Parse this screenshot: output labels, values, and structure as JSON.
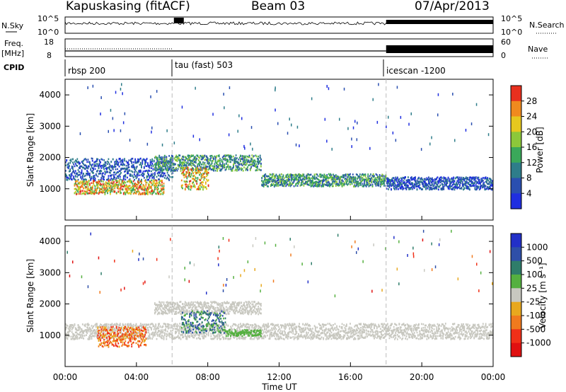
{
  "header": {
    "station": "Kapuskasing (fitACF)",
    "beam": "Beam 03",
    "date": "07/Apr/2013"
  },
  "panel_labels": {
    "nsky": "N.Sky",
    "freq": "Freq.",
    "freq_unit": "[MHz]",
    "cpid": "CPID",
    "nsearch": "N.Search",
    "nave": "Nave"
  },
  "noise_axis": {
    "left_top": "10^5",
    "left_bottom": "10^0",
    "right_top": "10^5",
    "right_bottom": "10^0"
  },
  "freq_axis": {
    "left_top": "18",
    "left_bottom": "8",
    "right_top": "60",
    "right_bottom": "0"
  },
  "cpid_segments": [
    {
      "label": "rbsp 200",
      "start_h": 0
    },
    {
      "label": "tau (fast) 503",
      "start_h": 6
    },
    {
      "label": "icescan -1200",
      "start_h": 18
    }
  ],
  "chart_data": [
    {
      "type": "heatmap",
      "name": "power",
      "ylabel": "Slant Range [km]",
      "xlabel": "Time UT",
      "xlim": [
        0,
        24
      ],
      "ylim": [
        0,
        4500
      ],
      "x_ticks": [
        "00:00",
        "04:00",
        "08:00",
        "12:00",
        "16:00",
        "20:00",
        "00:00"
      ],
      "y_ticks": [
        1000,
        2000,
        3000,
        4000
      ],
      "colorbar": {
        "label": "Power [dB]",
        "ticks": [
          "4",
          "8",
          "12",
          "16",
          "20",
          "24",
          "28"
        ],
        "colors": [
          "#1f2ee0",
          "#2a4fb0",
          "#2e7d8a",
          "#3aa85a",
          "#8cc83a",
          "#e6c81e",
          "#f08a1e",
          "#e8301e"
        ]
      },
      "scatter_bands": [
        {
          "t_start": 0,
          "t_end": 6,
          "range_lo": 1300,
          "range_hi": 2000,
          "level": "low"
        },
        {
          "t_start": 0.5,
          "t_end": 5.5,
          "range_lo": 850,
          "range_hi": 1300,
          "level": "high"
        },
        {
          "t_start": 5,
          "t_end": 11,
          "range_lo": 1600,
          "range_hi": 2100,
          "level": "mid"
        },
        {
          "t_start": 6.5,
          "t_end": 8,
          "range_lo": 1000,
          "range_hi": 1700,
          "level": "high"
        },
        {
          "t_start": 11,
          "t_end": 18,
          "range_lo": 1100,
          "range_hi": 1500,
          "level": "mid"
        },
        {
          "t_start": 18,
          "t_end": 24,
          "range_lo": 1000,
          "range_hi": 1400,
          "level": "low"
        }
      ]
    },
    {
      "type": "heatmap",
      "name": "velocity",
      "ylabel": "Slant Range [km]",
      "xlabel": "Time UT",
      "xlim": [
        0,
        24
      ],
      "ylim": [
        0,
        4500
      ],
      "x_ticks": [
        "00:00",
        "04:00",
        "08:00",
        "12:00",
        "16:00",
        "20:00",
        "00:00"
      ],
      "y_ticks": [
        1000,
        2000,
        3000,
        4000
      ],
      "colorbar": {
        "label": "Velocity [m s⁻¹]",
        "ticks": [
          "1000",
          "500",
          "100",
          "25",
          "-25",
          "-100",
          "-500",
          "-1000"
        ],
        "colors": [
          "#2230c8",
          "#2e4fa8",
          "#2e7d6a",
          "#55b040",
          "#c8c8c0",
          "#e8a81e",
          "#f07a1e",
          "#f03018",
          "#e01010"
        ]
      }
    }
  ],
  "x_axis_title": "Time UT",
  "bottom_ticks": [
    "00:00",
    "04:00",
    "08:00",
    "12:00",
    "16:00",
    "20:00",
    "00:00"
  ]
}
